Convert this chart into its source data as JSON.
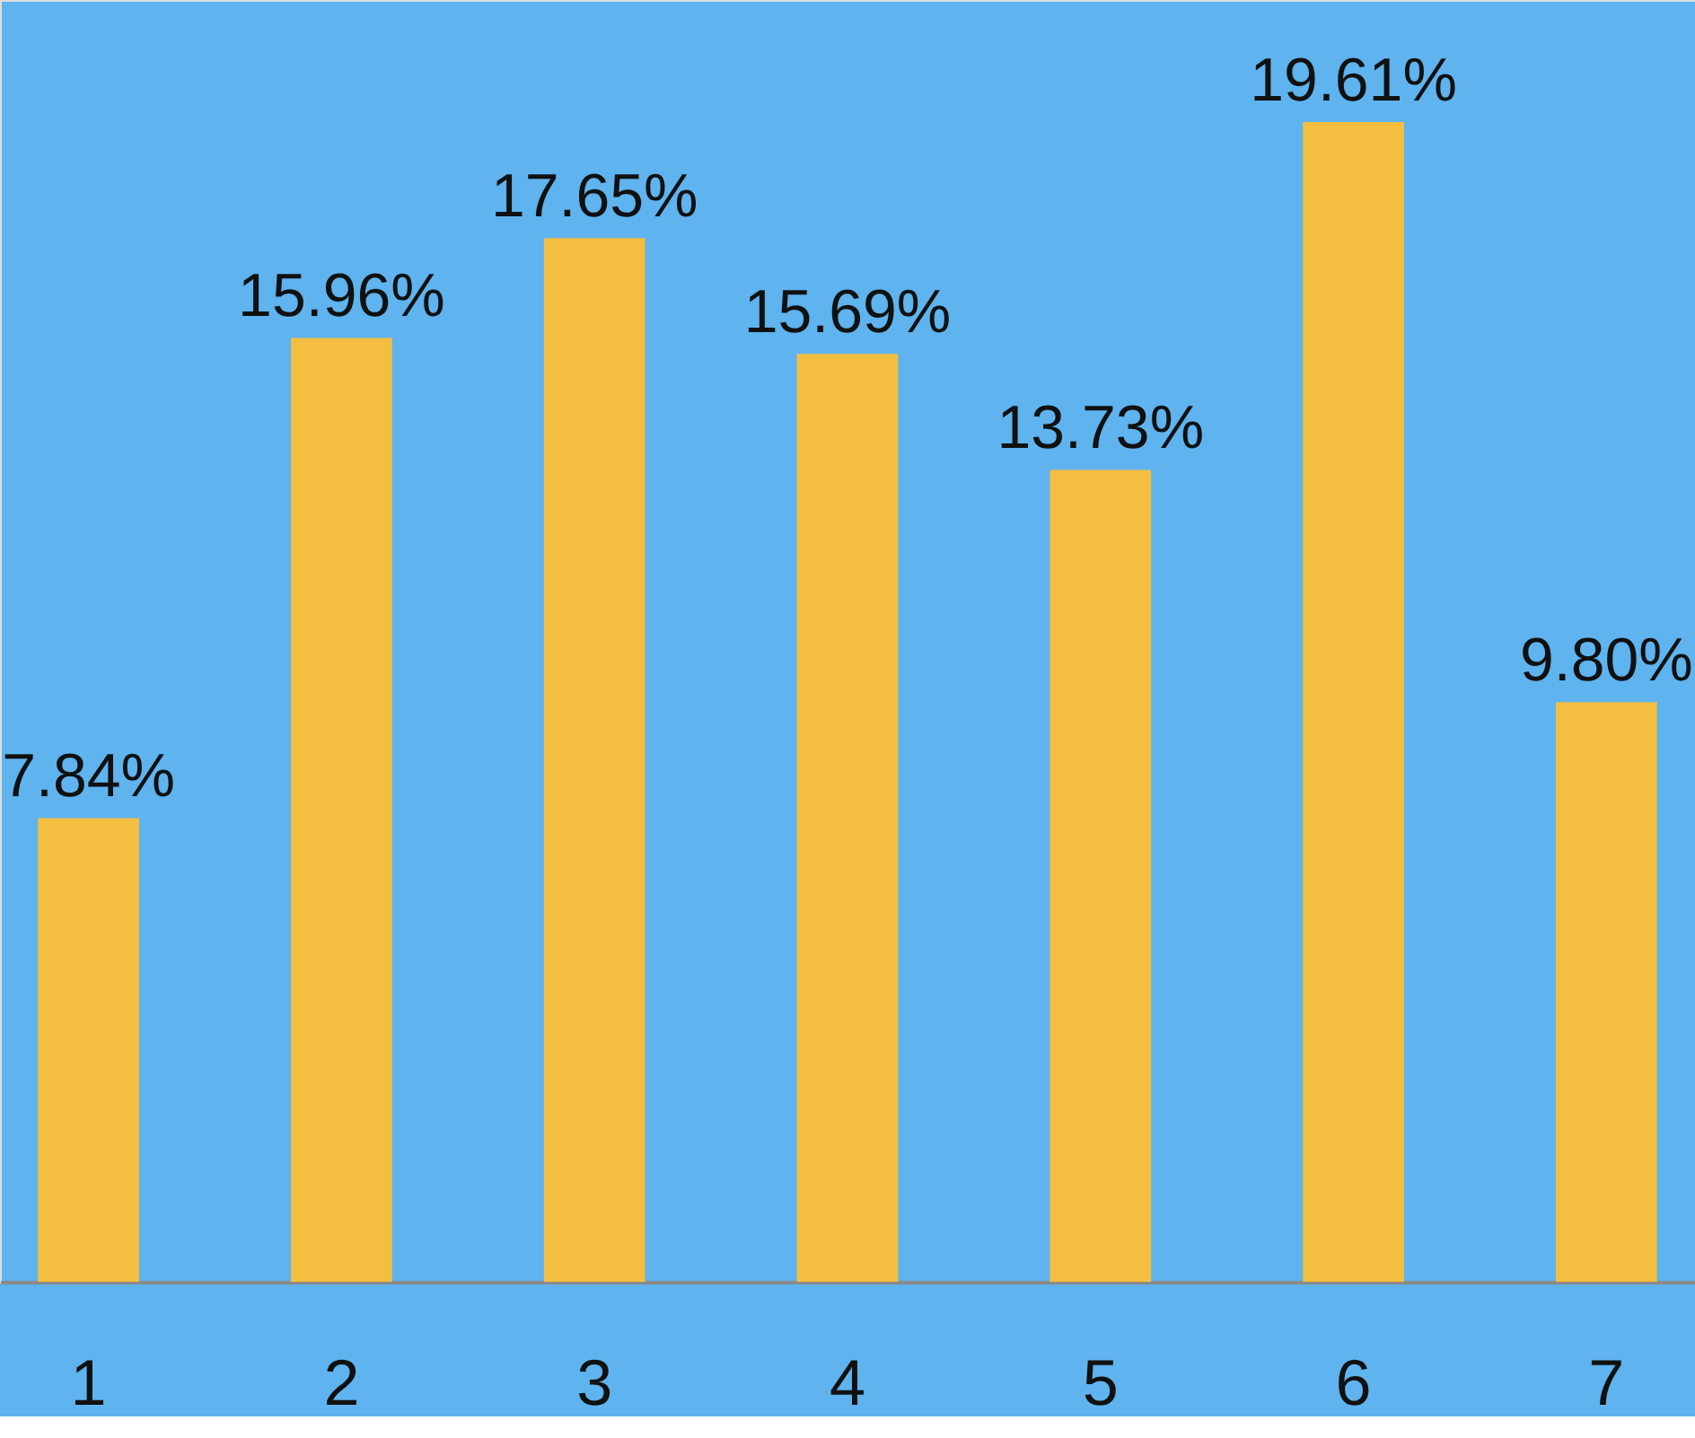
{
  "chart_data": {
    "type": "bar",
    "categories": [
      "1",
      "2",
      "3",
      "4",
      "5",
      "6",
      "7"
    ],
    "values": [
      7.84,
      15.96,
      17.65,
      15.69,
      13.73,
      19.61,
      9.8
    ],
    "value_labels": [
      "7.84%",
      "15.96%",
      "17.65%",
      "15.69%",
      "13.73%",
      "19.61%",
      "9.80%"
    ],
    "color": "#f4be41"
  }
}
